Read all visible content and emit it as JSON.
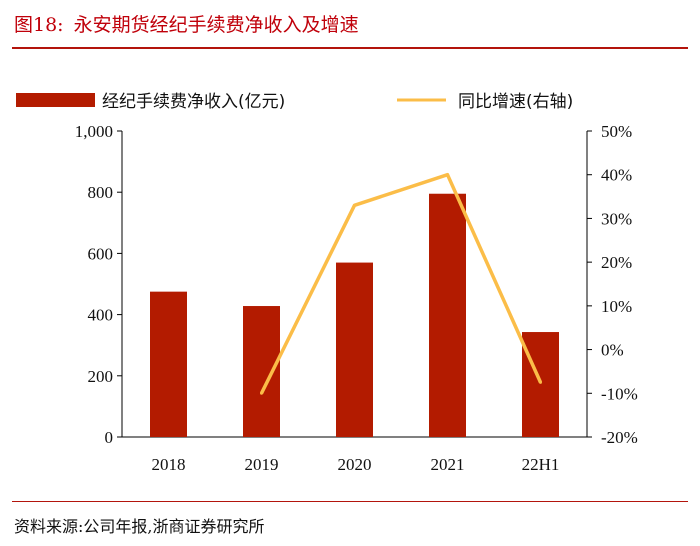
{
  "figure": {
    "number": "图18:",
    "title": "永安期货经纪手续费净收入及增速",
    "source": "资料来源:公司年报,浙商证券研究所"
  },
  "colors": {
    "bar": "#b31b00",
    "line": "#fbbd48",
    "title": "#c0000a",
    "rule": "#b3140c"
  },
  "chart_data": {
    "type": "bar",
    "categories": [
      "2018",
      "2019",
      "2020",
      "2021",
      "22H1"
    ],
    "series": [
      {
        "name": "经纪手续费净收入(亿元)",
        "type": "bar",
        "axis": "left",
        "values": [
          475,
          428,
          570,
          795,
          343
        ]
      },
      {
        "name": "同比增速(右轴)",
        "type": "line",
        "axis": "right",
        "values": [
          null,
          -10,
          33,
          40,
          -7.5
        ]
      }
    ],
    "y_left": {
      "lim": [
        0,
        1000
      ],
      "ticks": [
        0,
        200,
        400,
        600,
        800,
        1000
      ],
      "tick_labels": [
        "0",
        "200",
        "400",
        "600",
        "800",
        "1,000"
      ]
    },
    "y_right": {
      "lim": [
        -20,
        50
      ],
      "ticks": [
        -20,
        -10,
        0,
        10,
        20,
        30,
        40,
        50
      ],
      "tick_labels": [
        "-20%",
        "-10%",
        "0%",
        "10%",
        "20%",
        "30%",
        "40%",
        "50%"
      ]
    },
    "legend": {
      "position": "top",
      "labels": [
        "经纪手续费净收入(亿元)",
        "同比增速(右轴)"
      ]
    }
  }
}
